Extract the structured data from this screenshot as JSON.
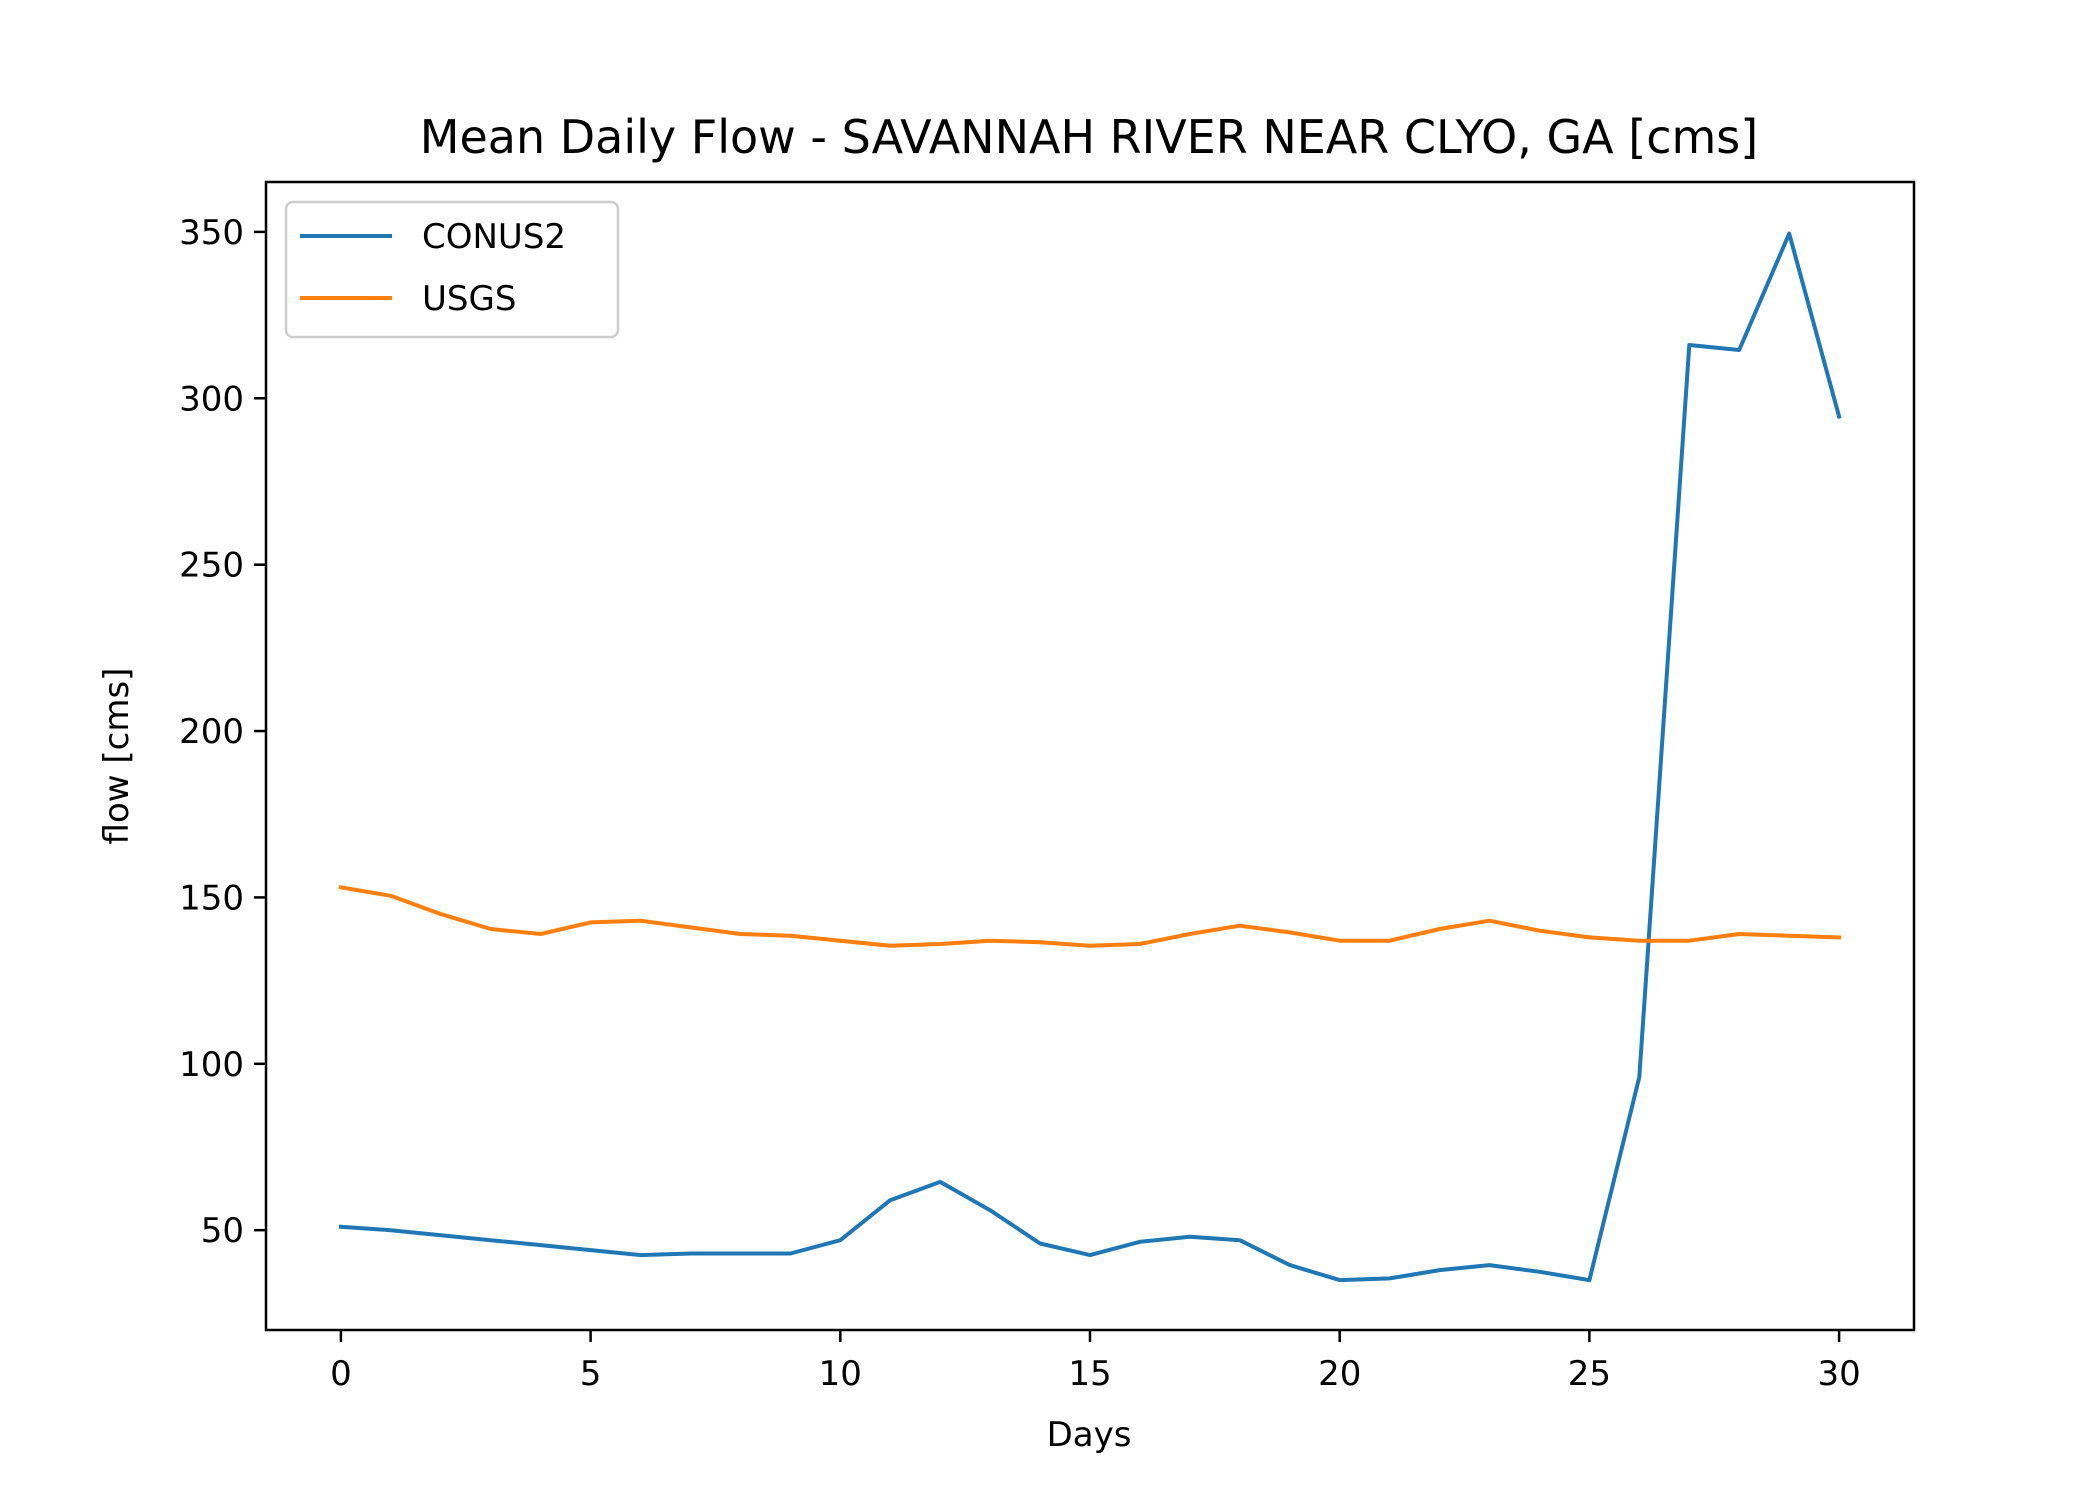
{
  "chart_data": {
    "type": "line",
    "title": "Mean Daily Flow - SAVANNAH RIVER NEAR CLYO, GA [cms]",
    "xlabel": "Days",
    "ylabel": "flow [cms]",
    "xlim": [
      -1.5,
      31.5
    ],
    "ylim": [
      20,
      365
    ],
    "xticks": [
      0,
      5,
      10,
      15,
      20,
      25,
      30
    ],
    "yticks": [
      50,
      100,
      150,
      200,
      250,
      300,
      350
    ],
    "grid": false,
    "legend_position": "upper-left",
    "x": [
      0,
      1,
      2,
      3,
      4,
      5,
      6,
      7,
      8,
      9,
      10,
      11,
      12,
      13,
      14,
      15,
      16,
      17,
      18,
      19,
      20,
      21,
      22,
      23,
      24,
      25,
      26,
      27,
      28,
      29,
      30
    ],
    "series": [
      {
        "name": "CONUS2",
        "color": "#1f77b4",
        "values": [
          51,
          50,
          48.5,
          47,
          45.5,
          44,
          42.5,
          43,
          43,
          43,
          47,
          59,
          64.5,
          56,
          46,
          42.5,
          46.5,
          48,
          47,
          39.5,
          35,
          35.5,
          38,
          39.5,
          37.5,
          35,
          96,
          316,
          314.5,
          349.5,
          294.5
        ]
      },
      {
        "name": "USGS",
        "color": "#ff7f0e",
        "values": [
          153,
          150.5,
          145,
          140.5,
          139,
          142.5,
          143,
          141,
          139,
          138.5,
          137,
          135.5,
          136,
          137,
          136.5,
          135.5,
          136,
          139,
          141.5,
          139.5,
          137,
          137,
          140.5,
          143,
          140,
          138,
          137,
          137,
          139,
          138.5,
          138
        ]
      }
    ]
  }
}
